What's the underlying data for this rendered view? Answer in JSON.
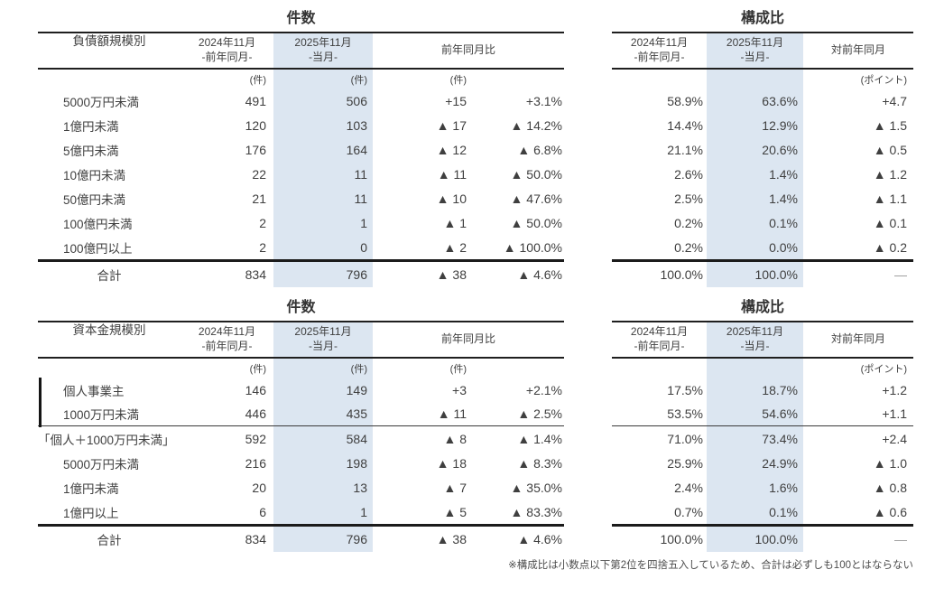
{
  "titles": {
    "count": "件数",
    "ratio": "構成比"
  },
  "headers": {
    "prev_l1": "2024年11月",
    "prev_l2": "-前年同月-",
    "curr_l1": "2025年11月",
    "curr_l2": "-当月-",
    "yoy": "前年同月比",
    "vs_prev_year": "対前年同月"
  },
  "units": {
    "cases": "(件)",
    "points": "(ポイント)"
  },
  "colors": {
    "highlight": "#dce6f1",
    "text": "#3f3f3f"
  },
  "footnote": "※構成比は小数点以下第2位を四捨五入しているため、合計は必ずしも100とはならない",
  "tables": [
    {
      "label_header": "負債額規模別",
      "rows": [
        {
          "label": "5000万円未満",
          "prev": "491",
          "curr": "506",
          "diff": "+15",
          "diff_pct": "+3.1%",
          "ratio_prev": "58.9%",
          "ratio_curr": "63.6%",
          "ratio_diff": "+4.7"
        },
        {
          "label": "1億円未満",
          "prev": "120",
          "curr": "103",
          "diff": "▲ 17",
          "diff_pct": "▲ 14.2%",
          "ratio_prev": "14.4%",
          "ratio_curr": "12.9%",
          "ratio_diff": "▲ 1.5"
        },
        {
          "label": "5億円未満",
          "prev": "176",
          "curr": "164",
          "diff": "▲ 12",
          "diff_pct": "▲ 6.8%",
          "ratio_prev": "21.1%",
          "ratio_curr": "20.6%",
          "ratio_diff": "▲ 0.5"
        },
        {
          "label": "10億円未満",
          "prev": "22",
          "curr": "11",
          "diff": "▲ 11",
          "diff_pct": "▲ 50.0%",
          "ratio_prev": "2.6%",
          "ratio_curr": "1.4%",
          "ratio_diff": "▲ 1.2"
        },
        {
          "label": "50億円未満",
          "prev": "21",
          "curr": "11",
          "diff": "▲ 10",
          "diff_pct": "▲ 47.6%",
          "ratio_prev": "2.5%",
          "ratio_curr": "1.4%",
          "ratio_diff": "▲ 1.1"
        },
        {
          "label": "100億円未満",
          "prev": "2",
          "curr": "1",
          "diff": "▲ 1",
          "diff_pct": "▲ 50.0%",
          "ratio_prev": "0.2%",
          "ratio_curr": "0.1%",
          "ratio_diff": "▲ 0.1"
        },
        {
          "label": "100億円以上",
          "prev": "2",
          "curr": "0",
          "diff": "▲ 2",
          "diff_pct": "▲ 100.0%",
          "ratio_prev": "0.2%",
          "ratio_curr": "0.0%",
          "ratio_diff": "▲ 0.2"
        }
      ],
      "total": {
        "label": "合計",
        "prev": "834",
        "curr": "796",
        "diff": "▲ 38",
        "diff_pct": "▲ 4.6%",
        "ratio_prev": "100.0%",
        "ratio_curr": "100.0%",
        "ratio_diff": "—"
      }
    },
    {
      "label_header": "資本金規模別",
      "rows": [
        {
          "label": "個人事業主",
          "bracket": true,
          "prev": "146",
          "curr": "149",
          "diff": "+3",
          "diff_pct": "+2.1%",
          "ratio_prev": "17.5%",
          "ratio_curr": "18.7%",
          "ratio_diff": "+1.2"
        },
        {
          "label": "1000万円未満",
          "bracket": true,
          "separator": true,
          "prev": "446",
          "curr": "435",
          "diff": "▲ 11",
          "diff_pct": "▲ 2.5%",
          "ratio_prev": "53.5%",
          "ratio_curr": "54.6%",
          "ratio_diff": "+1.1"
        },
        {
          "label": "「個人＋1000万円未満」",
          "flush": true,
          "prev": "592",
          "curr": "584",
          "diff": "▲ 8",
          "diff_pct": "▲ 1.4%",
          "ratio_prev": "71.0%",
          "ratio_curr": "73.4%",
          "ratio_diff": "+2.4"
        },
        {
          "label": "5000万円未満",
          "prev": "216",
          "curr": "198",
          "diff": "▲ 18",
          "diff_pct": "▲ 8.3%",
          "ratio_prev": "25.9%",
          "ratio_curr": "24.9%",
          "ratio_diff": "▲ 1.0"
        },
        {
          "label": "1億円未満",
          "prev": "20",
          "curr": "13",
          "diff": "▲ 7",
          "diff_pct": "▲ 35.0%",
          "ratio_prev": "2.4%",
          "ratio_curr": "1.6%",
          "ratio_diff": "▲ 0.8"
        },
        {
          "label": "1億円以上",
          "prev": "6",
          "curr": "1",
          "diff": "▲ 5",
          "diff_pct": "▲ 83.3%",
          "ratio_prev": "0.7%",
          "ratio_curr": "0.1%",
          "ratio_diff": "▲ 0.6"
        }
      ],
      "total": {
        "label": "合計",
        "prev": "834",
        "curr": "796",
        "diff": "▲ 38",
        "diff_pct": "▲ 4.6%",
        "ratio_prev": "100.0%",
        "ratio_curr": "100.0%",
        "ratio_diff": "—"
      }
    }
  ]
}
